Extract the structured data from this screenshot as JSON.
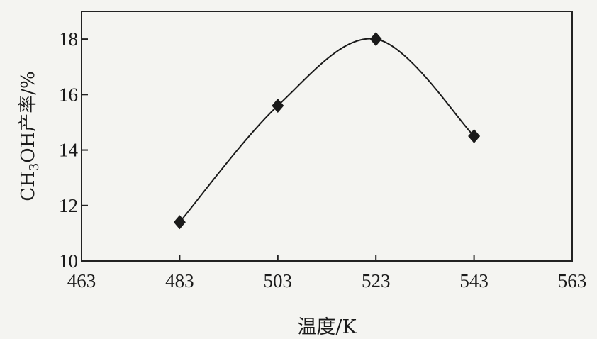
{
  "chart_data": {
    "type": "line",
    "title": "",
    "xlabel": "温度/K",
    "ylabel_parts": {
      "prefix": "CH",
      "subscript": "3",
      "suffix": "OH产率/%"
    },
    "xlim": [
      463,
      563
    ],
    "ylim": [
      10,
      19
    ],
    "x_ticks": [
      463,
      483,
      503,
      523,
      543,
      563
    ],
    "y_ticks": [
      10,
      12,
      14,
      16,
      18
    ],
    "grid": false,
    "smooth": true,
    "marker": "diamond",
    "series": [
      {
        "x": [
          483,
          503,
          523,
          543
        ],
        "y": [
          11.4,
          15.6,
          18.0,
          14.5
        ]
      }
    ]
  }
}
